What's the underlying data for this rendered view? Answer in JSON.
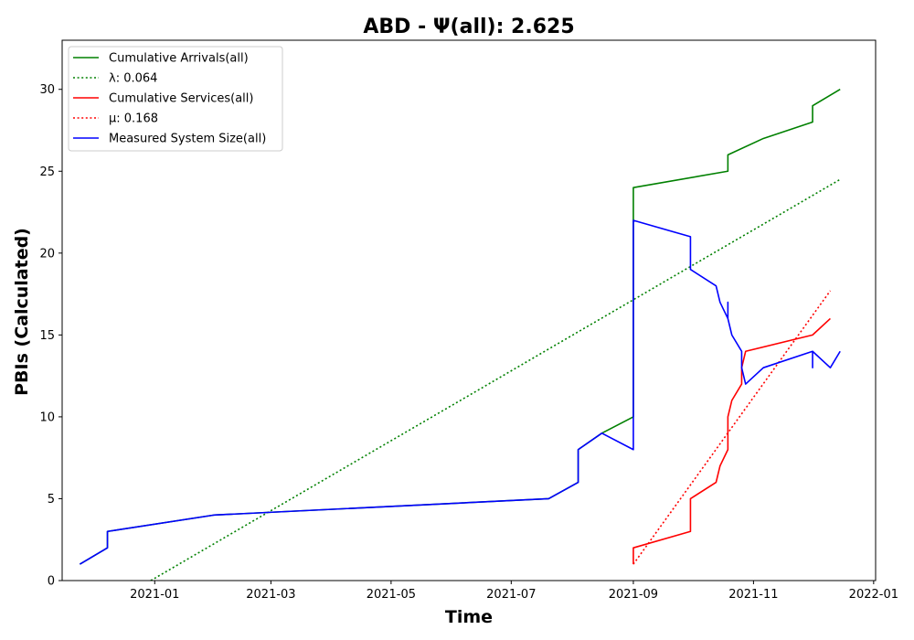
{
  "chart_data": {
    "type": "line",
    "title": "ABD -  Ψ(all): 2.625",
    "xlabel": "Time",
    "ylabel": "PBIs (Calculated)",
    "xlim": [
      "2020-11-15",
      "2022-01-02"
    ],
    "ylim": [
      0,
      33
    ],
    "x_ticks": [
      "2021-01",
      "2021-03",
      "2021-05",
      "2021-07",
      "2021-09",
      "2021-11",
      "2022-01"
    ],
    "y_ticks": [
      0,
      5,
      10,
      15,
      20,
      25,
      30
    ],
    "grid": false,
    "legend_position": "top-left",
    "series": [
      {
        "name": "Cumulative Arrivals(all)",
        "style": "solid",
        "color": "#008000",
        "points": [
          [
            "2020-11-24",
            1
          ],
          [
            "2020-12-08",
            2
          ],
          [
            "2020-12-08",
            3
          ],
          [
            "2021-01-31",
            4
          ],
          [
            "2021-07-20",
            5
          ],
          [
            "2021-08-04",
            6
          ],
          [
            "2021-08-04",
            8
          ],
          [
            "2021-08-16",
            9
          ],
          [
            "2021-09-01",
            10
          ],
          [
            "2021-09-01",
            24
          ],
          [
            "2021-10-19",
            25
          ],
          [
            "2021-10-19",
            26
          ],
          [
            "2021-11-06",
            27
          ],
          [
            "2021-12-01",
            28
          ],
          [
            "2021-12-01",
            29
          ],
          [
            "2021-12-15",
            30
          ]
        ]
      },
      {
        "name": "λ: 0.064",
        "style": "dotted",
        "color": "#008000",
        "points": [
          [
            "2020-12-30",
            0
          ],
          [
            "2021-12-15",
            24.5
          ]
        ]
      },
      {
        "name": "Cumulative Services(all)",
        "style": "solid",
        "color": "#ff0000",
        "points": [
          [
            "2021-09-01",
            1
          ],
          [
            "2021-09-01",
            2
          ],
          [
            "2021-09-30",
            3
          ],
          [
            "2021-09-30",
            5
          ],
          [
            "2021-10-13",
            6
          ],
          [
            "2021-10-15",
            7
          ],
          [
            "2021-10-19",
            8
          ],
          [
            "2021-10-19",
            10
          ],
          [
            "2021-10-21",
            11
          ],
          [
            "2021-10-26",
            12
          ],
          [
            "2021-10-26",
            13
          ],
          [
            "2021-10-28",
            14
          ],
          [
            "2021-12-01",
            15
          ],
          [
            "2021-12-10",
            16
          ]
        ]
      },
      {
        "name": "μ: 0.168",
        "style": "dotted",
        "color": "#ff0000",
        "points": [
          [
            "2021-09-01",
            1
          ],
          [
            "2021-12-10",
            17.7
          ]
        ]
      },
      {
        "name": "Measured System Size(all)",
        "style": "solid",
        "color": "#0000ff",
        "points": [
          [
            "2020-11-24",
            1
          ],
          [
            "2020-12-08",
            2
          ],
          [
            "2020-12-08",
            3
          ],
          [
            "2021-01-31",
            4
          ],
          [
            "2021-07-20",
            5
          ],
          [
            "2021-08-04",
            6
          ],
          [
            "2021-08-04",
            8
          ],
          [
            "2021-08-16",
            9
          ],
          [
            "2021-09-01",
            8
          ],
          [
            "2021-09-01",
            22
          ],
          [
            "2021-09-30",
            21
          ],
          [
            "2021-09-30",
            19
          ],
          [
            "2021-10-13",
            18
          ],
          [
            "2021-10-15",
            17
          ],
          [
            "2021-10-19",
            16
          ],
          [
            "2021-10-19",
            17
          ],
          [
            "2021-10-19",
            16
          ],
          [
            "2021-10-21",
            15
          ],
          [
            "2021-10-26",
            14
          ],
          [
            "2021-10-26",
            13
          ],
          [
            "2021-10-28",
            12
          ],
          [
            "2021-11-06",
            13
          ],
          [
            "2021-12-01",
            14
          ],
          [
            "2021-12-01",
            13
          ],
          [
            "2021-12-01",
            14
          ],
          [
            "2021-12-10",
            13
          ],
          [
            "2021-12-15",
            14
          ]
        ]
      }
    ]
  }
}
